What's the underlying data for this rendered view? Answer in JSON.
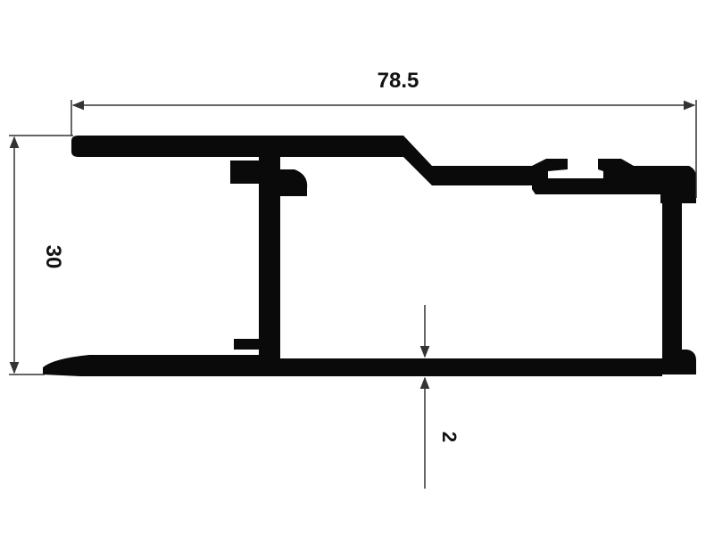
{
  "dimensions": {
    "width_label": "78.5",
    "height_label": "30",
    "wall_thickness_label": "2"
  },
  "colors": {
    "profile": "#0a0a0a",
    "dimension_line": "#333333",
    "background": "#ffffff"
  }
}
